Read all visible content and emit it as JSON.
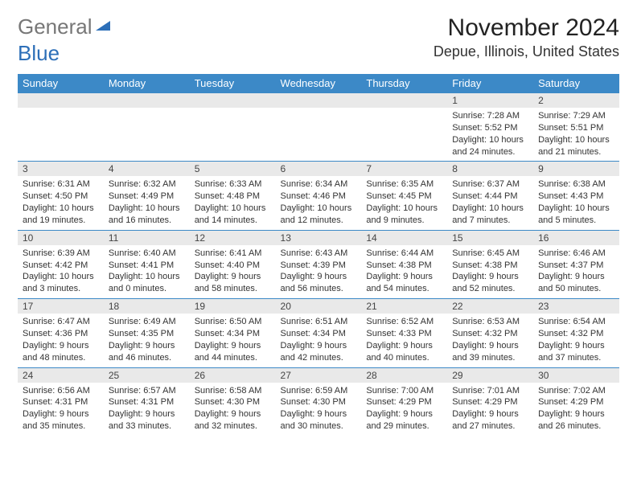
{
  "brand": {
    "part1": "General",
    "part2": "Blue"
  },
  "title": "November 2024",
  "location": "Depue, Illinois, United States",
  "columns": [
    "Sunday",
    "Monday",
    "Tuesday",
    "Wednesday",
    "Thursday",
    "Friday",
    "Saturday"
  ],
  "colors": {
    "header_bg": "#3c89c7",
    "header_text": "#ffffff",
    "daynum_bg": "#e9e9e9",
    "border": "#3c89c7",
    "brand_blue": "#2d6fb8"
  },
  "weeks": [
    [
      null,
      null,
      null,
      null,
      null,
      {
        "n": "1",
        "sunrise": "7:28 AM",
        "sunset": "5:52 PM",
        "daylight": "10 hours and 24 minutes."
      },
      {
        "n": "2",
        "sunrise": "7:29 AM",
        "sunset": "5:51 PM",
        "daylight": "10 hours and 21 minutes."
      }
    ],
    [
      {
        "n": "3",
        "sunrise": "6:31 AM",
        "sunset": "4:50 PM",
        "daylight": "10 hours and 19 minutes."
      },
      {
        "n": "4",
        "sunrise": "6:32 AM",
        "sunset": "4:49 PM",
        "daylight": "10 hours and 16 minutes."
      },
      {
        "n": "5",
        "sunrise": "6:33 AM",
        "sunset": "4:48 PM",
        "daylight": "10 hours and 14 minutes."
      },
      {
        "n": "6",
        "sunrise": "6:34 AM",
        "sunset": "4:46 PM",
        "daylight": "10 hours and 12 minutes."
      },
      {
        "n": "7",
        "sunrise": "6:35 AM",
        "sunset": "4:45 PM",
        "daylight": "10 hours and 9 minutes."
      },
      {
        "n": "8",
        "sunrise": "6:37 AM",
        "sunset": "4:44 PM",
        "daylight": "10 hours and 7 minutes."
      },
      {
        "n": "9",
        "sunrise": "6:38 AM",
        "sunset": "4:43 PM",
        "daylight": "10 hours and 5 minutes."
      }
    ],
    [
      {
        "n": "10",
        "sunrise": "6:39 AM",
        "sunset": "4:42 PM",
        "daylight": "10 hours and 3 minutes."
      },
      {
        "n": "11",
        "sunrise": "6:40 AM",
        "sunset": "4:41 PM",
        "daylight": "10 hours and 0 minutes."
      },
      {
        "n": "12",
        "sunrise": "6:41 AM",
        "sunset": "4:40 PM",
        "daylight": "9 hours and 58 minutes."
      },
      {
        "n": "13",
        "sunrise": "6:43 AM",
        "sunset": "4:39 PM",
        "daylight": "9 hours and 56 minutes."
      },
      {
        "n": "14",
        "sunrise": "6:44 AM",
        "sunset": "4:38 PM",
        "daylight": "9 hours and 54 minutes."
      },
      {
        "n": "15",
        "sunrise": "6:45 AM",
        "sunset": "4:38 PM",
        "daylight": "9 hours and 52 minutes."
      },
      {
        "n": "16",
        "sunrise": "6:46 AM",
        "sunset": "4:37 PM",
        "daylight": "9 hours and 50 minutes."
      }
    ],
    [
      {
        "n": "17",
        "sunrise": "6:47 AM",
        "sunset": "4:36 PM",
        "daylight": "9 hours and 48 minutes."
      },
      {
        "n": "18",
        "sunrise": "6:49 AM",
        "sunset": "4:35 PM",
        "daylight": "9 hours and 46 minutes."
      },
      {
        "n": "19",
        "sunrise": "6:50 AM",
        "sunset": "4:34 PM",
        "daylight": "9 hours and 44 minutes."
      },
      {
        "n": "20",
        "sunrise": "6:51 AM",
        "sunset": "4:34 PM",
        "daylight": "9 hours and 42 minutes."
      },
      {
        "n": "21",
        "sunrise": "6:52 AM",
        "sunset": "4:33 PM",
        "daylight": "9 hours and 40 minutes."
      },
      {
        "n": "22",
        "sunrise": "6:53 AM",
        "sunset": "4:32 PM",
        "daylight": "9 hours and 39 minutes."
      },
      {
        "n": "23",
        "sunrise": "6:54 AM",
        "sunset": "4:32 PM",
        "daylight": "9 hours and 37 minutes."
      }
    ],
    [
      {
        "n": "24",
        "sunrise": "6:56 AM",
        "sunset": "4:31 PM",
        "daylight": "9 hours and 35 minutes."
      },
      {
        "n": "25",
        "sunrise": "6:57 AM",
        "sunset": "4:31 PM",
        "daylight": "9 hours and 33 minutes."
      },
      {
        "n": "26",
        "sunrise": "6:58 AM",
        "sunset": "4:30 PM",
        "daylight": "9 hours and 32 minutes."
      },
      {
        "n": "27",
        "sunrise": "6:59 AM",
        "sunset": "4:30 PM",
        "daylight": "9 hours and 30 minutes."
      },
      {
        "n": "28",
        "sunrise": "7:00 AM",
        "sunset": "4:29 PM",
        "daylight": "9 hours and 29 minutes."
      },
      {
        "n": "29",
        "sunrise": "7:01 AM",
        "sunset": "4:29 PM",
        "daylight": "9 hours and 27 minutes."
      },
      {
        "n": "30",
        "sunrise": "7:02 AM",
        "sunset": "4:29 PM",
        "daylight": "9 hours and 26 minutes."
      }
    ]
  ],
  "labels": {
    "sunrise": "Sunrise:",
    "sunset": "Sunset:",
    "daylight": "Daylight:"
  }
}
